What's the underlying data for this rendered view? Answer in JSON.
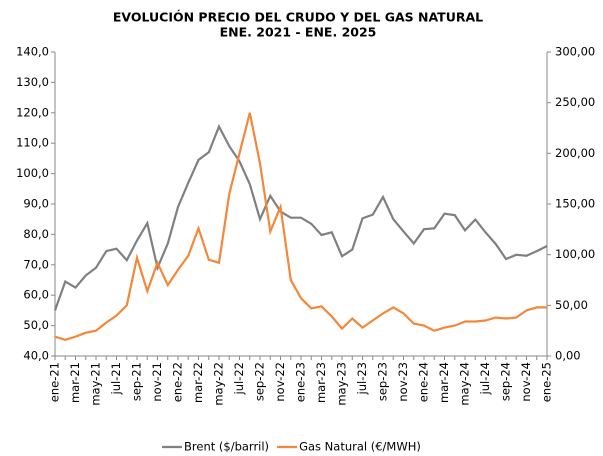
{
  "chart_data": {
    "type": "line",
    "title": "EVOLUCIÓN PRECIO DEL CRUDO Y DEL GAS NATURAL",
    "subtitle": "ENE. 2021 - ENE. 2025",
    "categories": [
      "ene-21",
      null,
      "mar-21",
      null,
      "may-21",
      null,
      "jul-21",
      null,
      "sep-21",
      null,
      "nov-21",
      null,
      "ene-22",
      null,
      "mar-22",
      null,
      "may-22",
      null,
      "jul-22",
      null,
      "sep-22",
      null,
      "nov-22",
      null,
      "ene-23",
      null,
      "mar-23",
      null,
      "may-23",
      null,
      "jul-23",
      null,
      "sep-23",
      null,
      "nov-23",
      null,
      "ene-24",
      null,
      "mar-24",
      null,
      "may-24",
      null,
      "jul-24",
      null,
      "sep-24",
      null,
      "nov-24",
      null,
      "ene-25"
    ],
    "series": [
      {
        "name": "Brent ($/barril)",
        "color": "#808080",
        "values": [
          55,
          64.5,
          62.5,
          66.5,
          69,
          74.5,
          75.3,
          71.5,
          78,
          83.7,
          69,
          77,
          89,
          97,
          104.5,
          107,
          115.5,
          109,
          104,
          96.5,
          85,
          92.7,
          87.5,
          85.5,
          85.5,
          83.5,
          79.8,
          80.7,
          72.8,
          75,
          85.3,
          86.5,
          92.3,
          85,
          81,
          77,
          81.7,
          82,
          86.8,
          86.3,
          81.3,
          84.9,
          80.7,
          76.8,
          71.9,
          73.3,
          73,
          74.5,
          76.2
        ]
      },
      {
        "name": "Gas Natural (€/MWH)",
        "color": "#f4883a",
        "axis": "y2",
        "values": [
          19,
          16,
          19,
          23,
          25,
          33,
          40,
          50,
          97,
          64,
          92,
          70,
          85,
          99,
          126,
          95,
          92,
          160,
          200,
          240,
          190,
          123,
          147,
          75,
          57,
          47,
          49,
          39,
          27,
          37,
          28,
          35,
          42,
          48,
          42,
          32,
          30,
          25,
          28,
          30,
          34,
          34,
          35,
          38,
          37,
          38,
          45,
          48,
          48
        ]
      }
    ],
    "ylim": [
      40,
      140
    ],
    "yticks": [
      {
        "value": 40,
        "label": "40,0"
      },
      {
        "value": 50,
        "label": "50,0"
      },
      {
        "value": 60,
        "label": "60,0"
      },
      {
        "value": 70,
        "label": "70,0"
      },
      {
        "value": 80,
        "label": "80,0"
      },
      {
        "value": 90,
        "label": "90,0"
      },
      {
        "value": 100,
        "label": "100,0"
      },
      {
        "value": 110,
        "label": "110,0"
      },
      {
        "value": 120,
        "label": "120,0"
      },
      {
        "value": 130,
        "label": "130,0"
      },
      {
        "value": 140,
        "label": "140,0"
      }
    ],
    "y2lim": [
      0,
      300
    ],
    "y2ticks": [
      {
        "value": 0,
        "label": "0,00"
      },
      {
        "value": 50,
        "label": "50,00"
      },
      {
        "value": 100,
        "label": "100,00"
      },
      {
        "value": 150,
        "label": "150,00"
      },
      {
        "value": 200,
        "label": "200,00"
      },
      {
        "value": 250,
        "label": "250,00"
      },
      {
        "value": 300,
        "label": "300,00"
      }
    ],
    "legend": "bottom"
  }
}
